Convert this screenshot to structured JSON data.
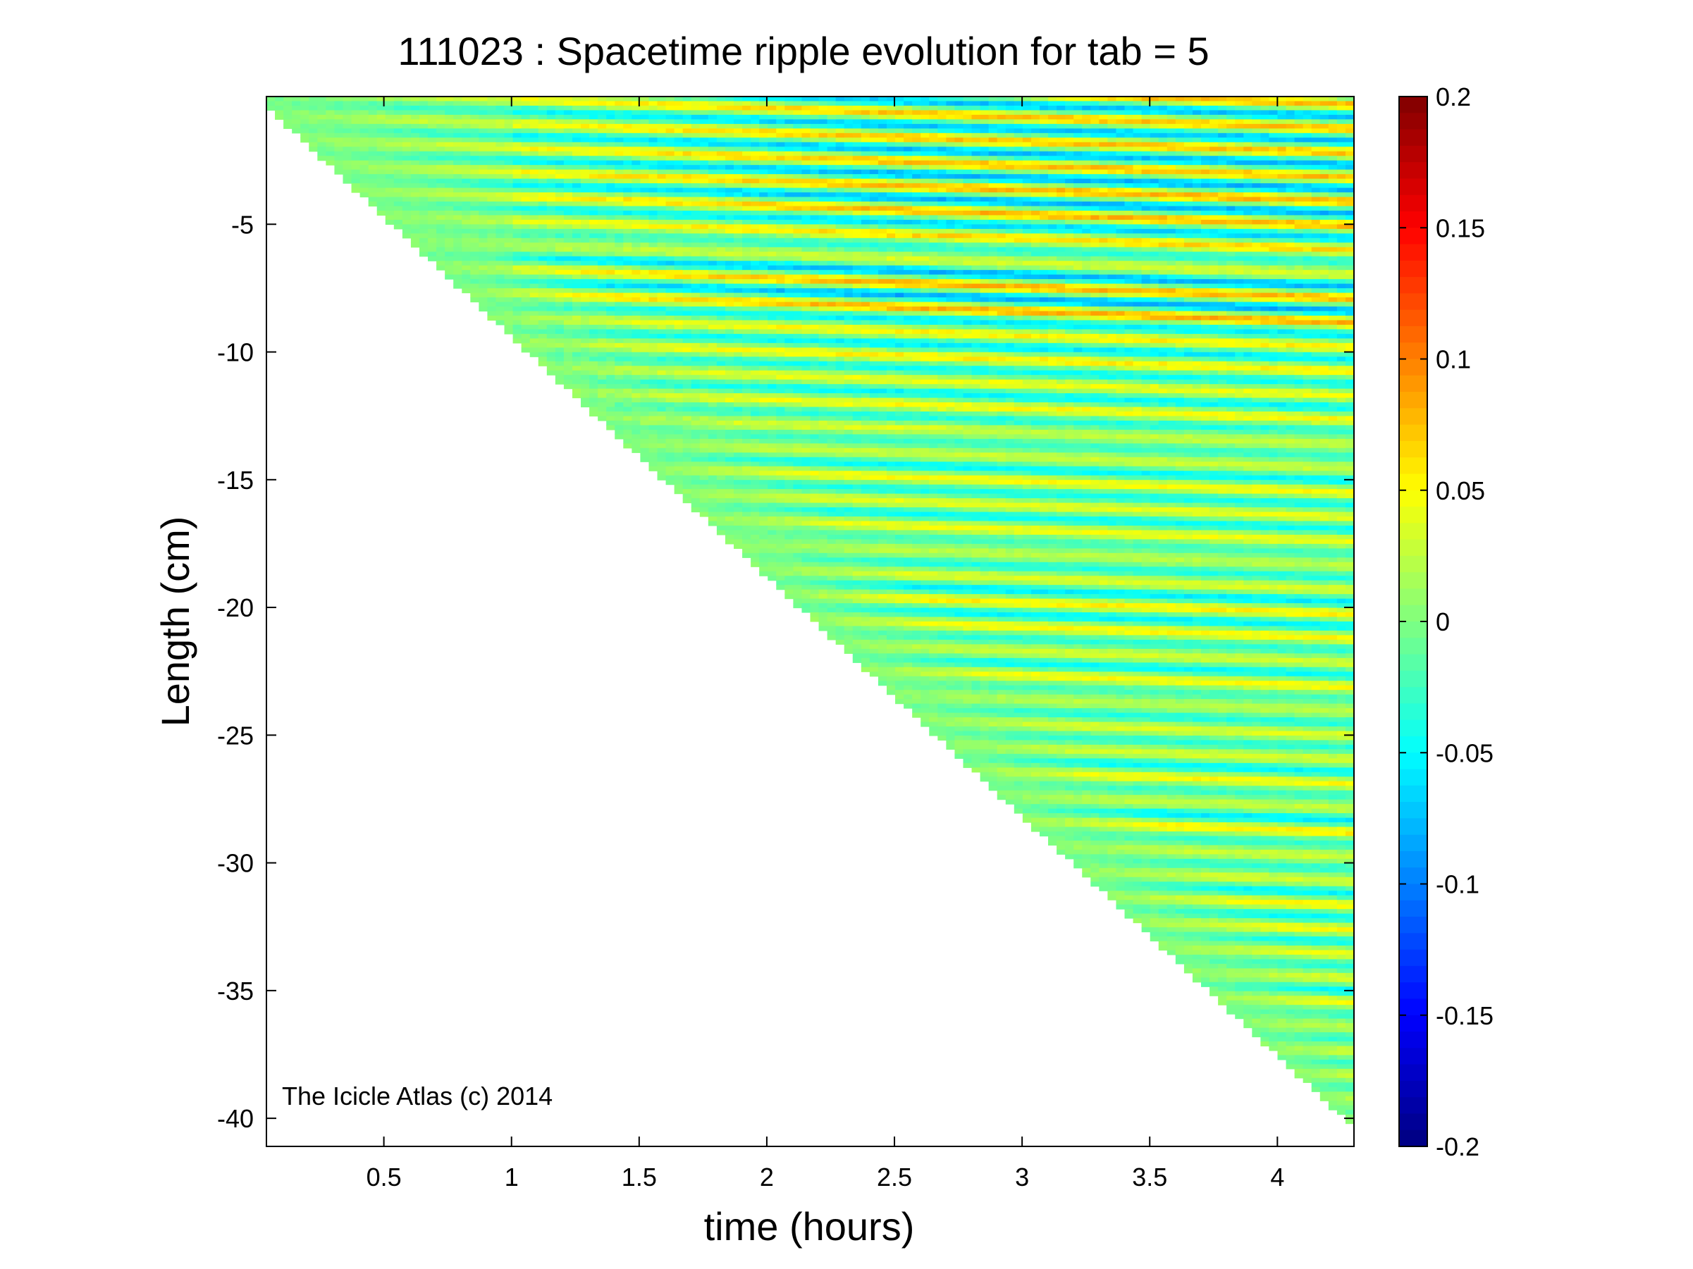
{
  "chart_data": {
    "type": "heatmap",
    "title": "111023 : Spacetime ripple evolution for tab = 5",
    "xlabel": "time (hours)",
    "ylabel": "Length (cm)",
    "annotation": "The Icicle Atlas (c) 2014",
    "xlim": [
      0.04,
      4.3
    ],
    "ylim": [
      -41.1,
      0
    ],
    "x_ticks": [
      0.5,
      1,
      1.5,
      2,
      2.5,
      3,
      3.5,
      4
    ],
    "x_tick_labels": [
      "0.5",
      "1",
      "1.5",
      "2",
      "2.5",
      "3",
      "3.5",
      "4"
    ],
    "y_ticks": [
      -5,
      -10,
      -15,
      -20,
      -25,
      -30,
      -35,
      -40
    ],
    "y_tick_labels": [
      "-5",
      "-10",
      "-15",
      "-20",
      "-25",
      "-30",
      "-35",
      "-40"
    ],
    "colorbar": {
      "colormap": "jet",
      "range": [
        -0.2,
        0.2
      ],
      "ticks": [
        0.2,
        0.15,
        0.1,
        0.05,
        0,
        -0.05,
        -0.1,
        -0.15,
        -0.2
      ],
      "tick_labels": [
        "0.2",
        "0.15",
        "0.1",
        "0.05",
        "0",
        "-0.05",
        "-0.1",
        "-0.15",
        "-0.2"
      ]
    },
    "data_region_boundary": {
      "x": [
        0.04,
        4.3
      ],
      "y": [
        -0.4,
        -40.4
      ]
    },
    "ripples": {
      "wavelength_cm": 0.95,
      "drift_cm_per_hour": 0.35,
      "typical_amplitude": 0.06,
      "max_amplitude": 0.2
    },
    "colors": {
      "background": "#ffffff",
      "axis": "#000000"
    }
  }
}
